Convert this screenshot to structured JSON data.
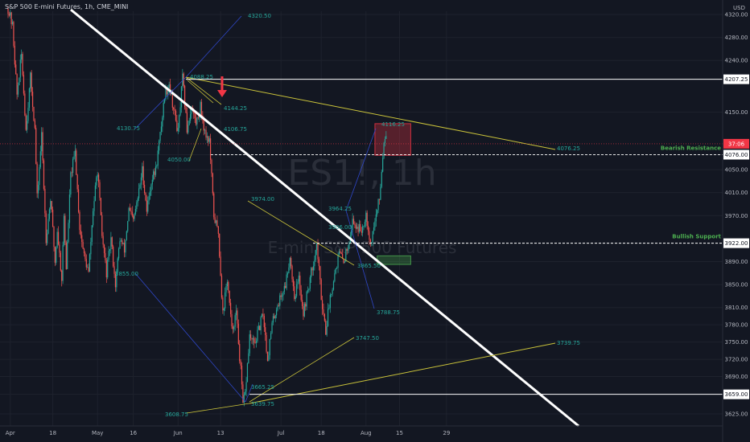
{
  "header": {
    "symbol_title": "S&P 500 E-mini Futures, 1h, CME_MINI",
    "currency": "USD"
  },
  "watermark": {
    "ticker": "ES1!, 1h",
    "name": "E-mini S&P 500 Futures"
  },
  "colors": {
    "background": "#131722",
    "up": "#26a69a",
    "down": "#ef5350",
    "trend": "#ffffff",
    "fib_yellow": "#c9c23a",
    "blue_line": "#2f47c8",
    "annotation": "#26a69a",
    "resistance_zone": "#f23645",
    "support_zone": "#4caf50",
    "current_price_tag": "#f23645"
  },
  "chart_data": {
    "type": "candlestick",
    "title": "S&P 500 E-mini Futures, 1h, CME_MINI",
    "y_axis": {
      "label": "USD",
      "range": [
        3610,
        4340
      ],
      "ticks": [
        4320,
        4280,
        4240,
        4207.25,
        4150,
        4076,
        4050,
        4010,
        3970,
        3922,
        3890,
        3850,
        3810,
        3780,
        3750,
        3720,
        3690,
        3659,
        3625
      ]
    },
    "x_axis": {
      "ticks": [
        "Apr",
        "18",
        "May",
        "16",
        "Jun",
        "13",
        "Jul",
        "18",
        "Aug",
        "15",
        "29"
      ],
      "ticks_index": [
        1,
        20,
        40,
        56,
        76,
        95,
        122,
        140,
        160,
        175,
        196
      ]
    },
    "price_path": [
      [
        0,
        4330
      ],
      [
        2,
        4300
      ],
      [
        4,
        4180
      ],
      [
        6,
        4250
      ],
      [
        8,
        4120
      ],
      [
        10,
        4210
      ],
      [
        12,
        4120
      ],
      [
        13,
        4000
      ],
      [
        15,
        4110
      ],
      [
        17,
        3930
      ],
      [
        19,
        4000
      ],
      [
        21,
        3890
      ],
      [
        22,
        3945
      ],
      [
        24,
        3860
      ],
      [
        25,
        3970
      ],
      [
        26,
        3880
      ],
      [
        28,
        4040
      ],
      [
        30,
        4080
      ],
      [
        32,
        3950
      ],
      [
        34,
        3900
      ],
      [
        36,
        3870
      ],
      [
        38,
        3980
      ],
      [
        40,
        4050
      ],
      [
        42,
        3935
      ],
      [
        44,
        3870
      ],
      [
        46,
        3930
      ],
      [
        48,
        3850
      ],
      [
        50,
        3930
      ],
      [
        52,
        3910
      ],
      [
        54,
        3980
      ],
      [
        56,
        3960
      ],
      [
        58,
        4000
      ],
      [
        60,
        4050
      ],
      [
        62,
        3980
      ],
      [
        64,
        4030
      ],
      [
        66,
        4050
      ],
      [
        68,
        4110
      ],
      [
        70,
        4180
      ],
      [
        72,
        4200
      ],
      [
        74,
        4155
      ],
      [
        76,
        4115
      ],
      [
        78,
        4210
      ],
      [
        80,
        4120
      ],
      [
        82,
        4160
      ],
      [
        84,
        4130
      ],
      [
        86,
        4160
      ],
      [
        88,
        4115
      ],
      [
        90,
        4100
      ],
      [
        92,
        3970
      ],
      [
        94,
        3940
      ],
      [
        96,
        3800
      ],
      [
        98,
        3860
      ],
      [
        100,
        3770
      ],
      [
        102,
        3800
      ],
      [
        104,
        3700
      ],
      [
        105,
        3640
      ],
      [
        106,
        3660
      ],
      [
        108,
        3760
      ],
      [
        110,
        3745
      ],
      [
        112,
        3770
      ],
      [
        114,
        3800
      ],
      [
        116,
        3720
      ],
      [
        118,
        3780
      ],
      [
        120,
        3810
      ],
      [
        122,
        3830
      ],
      [
        124,
        3850
      ],
      [
        126,
        3900
      ],
      [
        128,
        3830
      ],
      [
        130,
        3860
      ],
      [
        132,
        3800
      ],
      [
        134,
        3840
      ],
      [
        136,
        3880
      ],
      [
        138,
        3920
      ],
      [
        140,
        3830
      ],
      [
        142,
        3770
      ],
      [
        144,
        3830
      ],
      [
        146,
        3870
      ],
      [
        148,
        3905
      ],
      [
        150,
        3890
      ],
      [
        152,
        3920
      ],
      [
        154,
        3960
      ],
      [
        156,
        3950
      ],
      [
        158,
        3945
      ],
      [
        160,
        3975
      ],
      [
        162,
        3920
      ],
      [
        164,
        3960
      ],
      [
        166,
        4000
      ],
      [
        168,
        4100
      ],
      [
        169,
        4117
      ]
    ],
    "horizontal_levels": [
      {
        "label": "4207.25",
        "value": 4207.25,
        "style": "solid"
      },
      {
        "label": "Bearish Resistance",
        "value": 4076.0,
        "style": "dashed",
        "tag": "4076.00"
      },
      {
        "label": "Bullish Support",
        "value": 3922.0,
        "style": "dashed",
        "tag": "3922.00"
      },
      {
        "label": "3659.00",
        "value": 3659.0,
        "style": "solid"
      }
    ],
    "current_price": {
      "tag": "37:06",
      "value": 4095
    },
    "annotations": [
      "4320.50",
      "4088.25",
      "4144.25",
      "4130.75",
      "4106.75",
      "4050.00",
      "3974.00",
      "3855.00",
      "3665.25",
      "3608.75",
      "3639.75",
      "3747.50",
      "3739.75",
      "3865.50",
      "3788.75",
      "3964.25",
      "3906.00",
      "4116.25",
      "4076.25"
    ],
    "zones": [
      {
        "name": "resistance-zone",
        "from": 4075,
        "to": 4130,
        "x_index": [
          164,
          180
        ]
      },
      {
        "name": "support-zone",
        "from": 3885,
        "to": 3900,
        "x_index": [
          165,
          180
        ]
      }
    ]
  }
}
